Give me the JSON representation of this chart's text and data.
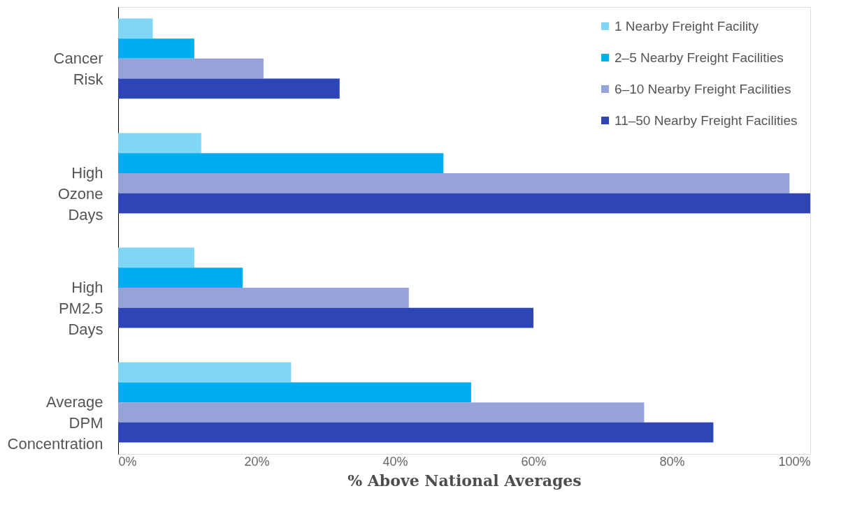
{
  "chart_data": {
    "type": "bar",
    "orientation": "horizontal",
    "xlabel": "% Above National Averages",
    "categories": [
      "Cancer Risk",
      "High Ozone Days",
      "High PM2.5 Days",
      "Average DPM Concentration"
    ],
    "series": [
      {
        "name": "1 Nearby Freight Facility",
        "color": "#7fd6f5",
        "values": [
          5,
          12,
          11,
          25
        ]
      },
      {
        "name": "2–5 Nearby Freight Facilities",
        "color": "#00aeef",
        "values": [
          11,
          47,
          18,
          51
        ]
      },
      {
        "name": "6–10 Nearby Freight Facilities",
        "color": "#96a3d9",
        "values": [
          21,
          97,
          42,
          76
        ]
      },
      {
        "name": "11–50 Nearby Freight Facilities",
        "color": "#2e45b8",
        "values": [
          32,
          100,
          60,
          86
        ]
      }
    ],
    "xlim": [
      0,
      100
    ],
    "xticks": [
      {
        "value": 0,
        "label": "0%"
      },
      {
        "value": 20,
        "label": "20%"
      },
      {
        "value": 40,
        "label": "40%"
      },
      {
        "value": 60,
        "label": "60%"
      },
      {
        "value": 80,
        "label": "80%"
      },
      {
        "value": 100,
        "label": "100%"
      }
    ],
    "grid": false,
    "legend": "top right"
  }
}
